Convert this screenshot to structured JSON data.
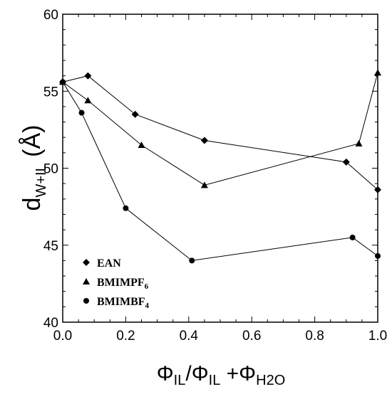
{
  "chart_data": {
    "type": "line",
    "xlabel": {
      "base": "Φ",
      "sub1": "IL",
      "mid": "/Φ",
      "sub2": "IL",
      "plus": " +Φ",
      "sub3": "H2O"
    },
    "ylabel": {
      "base": "d",
      "sub": "W+IL",
      "unit": " (Å)"
    },
    "xlim": [
      0,
      1
    ],
    "ylim": [
      40,
      60
    ],
    "xticks": [
      0.0,
      0.2,
      0.4,
      0.6,
      0.8,
      1.0
    ],
    "xtick_labels": [
      "0.0",
      "0.2",
      "0.4",
      "0.6",
      "0.8",
      "1.0"
    ],
    "yticks": [
      40,
      45,
      50,
      55,
      60
    ],
    "ytick_labels": [
      "40",
      "45",
      "50",
      "55",
      "60"
    ],
    "grid": false,
    "legend_position": "bottom-left",
    "series": [
      {
        "key": "ean",
        "marker": "diamond",
        "legend": {
          "base": "EAN",
          "sub": ""
        },
        "x": [
          0.0,
          0.08,
          0.23,
          0.45,
          0.9,
          1.0
        ],
        "y": [
          55.6,
          56.0,
          53.5,
          51.8,
          50.4,
          48.6
        ]
      },
      {
        "key": "bmimpf6",
        "marker": "triangle",
        "legend": {
          "base": "BMIMPF",
          "sub": "6"
        },
        "x": [
          0.0,
          0.08,
          0.25,
          0.45,
          0.94,
          1.0
        ],
        "y": [
          55.6,
          54.4,
          51.5,
          48.9,
          51.6,
          56.2
        ]
      },
      {
        "key": "bmimbf4",
        "marker": "circle",
        "legend": {
          "base": "BMIMBF",
          "sub": "4"
        },
        "x": [
          0.0,
          0.06,
          0.2,
          0.41,
          0.92,
          1.0
        ],
        "y": [
          55.6,
          53.6,
          47.4,
          44.0,
          45.5,
          44.3
        ]
      }
    ]
  }
}
